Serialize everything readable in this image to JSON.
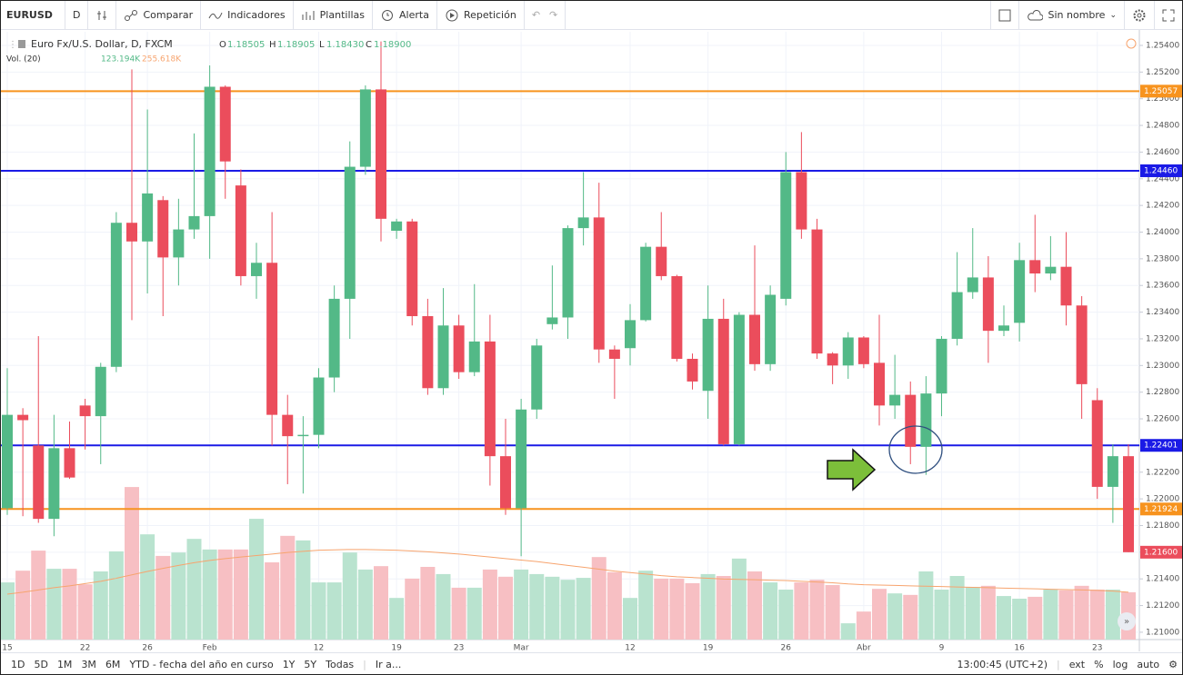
{
  "toolbar": {
    "symbol": "EURUSD",
    "interval": "D",
    "compare": "Comparar",
    "indicators": "Indicadores",
    "templates": "Plantillas",
    "alert": "Alerta",
    "replay": "Repetición",
    "layout_name": "Sin nombre"
  },
  "legend": {
    "title": "Euro Fx/U.S. Dollar, D, FXCM",
    "o_label": "O",
    "o_value": "1.18505",
    "h_label": "H",
    "h_value": "1.18905",
    "l_label": "L",
    "l_value": "1.18430",
    "c_label": "C",
    "c_value": "1.18900",
    "volume_title": "Vol. (20)",
    "volume_value": "123.194K",
    "volume_ma_value": "255.618K"
  },
  "bottom_bar": {
    "ranges": [
      "1D",
      "5D",
      "1M",
      "3M",
      "6M",
      "YTD - fecha del año en curso",
      "1Y",
      "5Y",
      "Todas"
    ],
    "goto": "Ir a...",
    "clock": "13:00:45 (UTC+2)",
    "ext": "ext",
    "percent": "%",
    "log": "log",
    "auto": "auto"
  },
  "chart_data": {
    "type": "candlestick",
    "categories": [
      "15",
      null,
      null,
      null,
      null,
      "22",
      null,
      null,
      null,
      "26",
      null,
      null,
      null,
      "Feb",
      null,
      null,
      null,
      null,
      null,
      null,
      "12",
      null,
      null,
      null,
      null,
      "19",
      null,
      null,
      null,
      "23",
      null,
      null,
      null,
      "Mar",
      null,
      null,
      null,
      null,
      null,
      null,
      "12",
      null,
      null,
      null,
      null,
      "19",
      null,
      null,
      null,
      null,
      "26",
      null,
      null,
      null,
      null,
      "Abr",
      null,
      null,
      null,
      null,
      "9",
      null,
      null,
      null,
      null,
      "16",
      null,
      null,
      null,
      null,
      "23",
      null,
      null
    ],
    "open": [
      1.2193,
      1.2263,
      1.224,
      1.2185,
      1.2238,
      1.227,
      1.2262,
      1.2299,
      1.2407,
      1.2393,
      1.2424,
      1.2381,
      1.2402,
      1.2412,
      1.2509,
      1.2435,
      1.2367,
      1.2377,
      1.2263,
      1.2247,
      1.2248,
      1.2291,
      1.235,
      1.2449,
      1.2507,
      1.2401,
      1.2408,
      1.2337,
      1.2283,
      1.233,
      1.2295,
      1.2318,
      1.2232,
      1.2193,
      1.2267,
      1.2331,
      1.2336,
      1.2403,
      1.2411,
      1.2312,
      1.2313,
      1.2334,
      1.2389,
      1.2367,
      1.2305,
      1.2281,
      1.2335,
      1.2241,
      1.2338,
      1.2301,
      1.235,
      1.2445,
      1.2402,
      1.2309,
      1.23,
      1.2321,
      1.2302,
      1.227,
      1.2278,
      1.2239,
      1.2279,
      1.232,
      1.2355,
      1.2366,
      1.2326,
      1.2332,
      1.2379,
      1.2369,
      1.2374,
      1.2345,
      1.2274,
      1.2209,
      1.2232
    ],
    "high": [
      1.2298,
      1.2268,
      1.2322,
      1.2263,
      1.2258,
      1.2275,
      1.2302,
      1.2415,
      1.2522,
      1.2492,
      1.2427,
      1.2425,
      1.2474,
      1.2525,
      1.251,
      1.2447,
      1.2392,
      1.2415,
      1.2278,
      1.2262,
      1.2298,
      1.236,
      1.2468,
      1.251,
      1.2543,
      1.241,
      1.241,
      1.235,
      1.2358,
      1.2338,
      1.2361,
      1.2338,
      1.226,
      1.2275,
      1.232,
      1.2375,
      1.2405,
      1.2445,
      1.2437,
      1.2315,
      1.2346,
      1.2392,
      1.2415,
      1.2368,
      1.2309,
      1.236,
      1.235,
      1.234,
      1.239,
      1.236,
      1.246,
      1.2475,
      1.241,
      1.231,
      1.2325,
      1.2322,
      1.2338,
      1.2308,
      1.2288,
      1.2292,
      1.2322,
      1.2385,
      1.2403,
      1.2382,
      1.2345,
      1.2392,
      1.2413,
      1.2397,
      1.24,
      1.2352,
      1.2283,
      1.2241,
      1.2241
    ],
    "low": [
      1.2188,
      1.2187,
      1.2182,
      1.2172,
      1.2215,
      1.2237,
      1.2226,
      1.2295,
      1.2334,
      1.2354,
      1.2337,
      1.236,
      1.2395,
      1.238,
      1.2425,
      1.236,
      1.235,
      1.224,
      1.2211,
      1.2204,
      1.2238,
      1.228,
      1.232,
      1.2443,
      1.2393,
      1.2395,
      1.233,
      1.2278,
      1.2278,
      1.229,
      1.2292,
      1.221,
      1.2188,
      1.2157,
      1.226,
      1.2327,
      1.232,
      1.239,
      1.2302,
      1.2275,
      1.23,
      1.2333,
      1.2364,
      1.2303,
      1.2282,
      1.226,
      1.224,
      1.224,
      1.2296,
      1.2296,
      1.2345,
      1.2395,
      1.2305,
      1.2286,
      1.229,
      1.2298,
      1.2255,
      1.226,
      1.2226,
      1.2218,
      1.2262,
      1.2315,
      1.235,
      1.2302,
      1.2322,
      1.2318,
      1.2355,
      1.2364,
      1.233,
      1.226,
      1.22,
      1.2182,
      1.216
    ],
    "close": [
      1.2263,
      1.2259,
      1.2185,
      1.2238,
      1.2216,
      1.2262,
      1.2299,
      1.2407,
      1.2393,
      1.2429,
      1.2381,
      1.2402,
      1.2412,
      1.2509,
      1.2453,
      1.2367,
      1.2377,
      1.2263,
      1.2247,
      1.2248,
      1.2291,
      1.235,
      1.2449,
      1.2507,
      1.241,
      1.2408,
      1.2337,
      1.2283,
      1.233,
      1.2295,
      1.2318,
      1.2232,
      1.2193,
      1.2267,
      1.2315,
      1.2336,
      1.2403,
      1.2411,
      1.2312,
      1.2305,
      1.2334,
      1.2389,
      1.2367,
      1.2305,
      1.2288,
      1.2335,
      1.2241,
      1.2338,
      1.2301,
      1.2353,
      1.2445,
      1.2402,
      1.2309,
      1.23,
      1.2321,
      1.2301,
      1.227,
      1.2278,
      1.2239,
      1.2279,
      1.232,
      1.2355,
      1.2366,
      1.2326,
      1.233,
      1.2379,
      1.2369,
      1.2374,
      1.2345,
      1.2286,
      1.2209,
      1.2232,
      1.216
    ],
    "up_color": "#53b987",
    "down_color": "#eb4d5c",
    "volume": [
      151,
      182,
      235,
      187,
      187,
      146,
      180,
      233,
      403,
      278,
      221,
      230,
      266,
      238,
      238,
      238,
      319,
      204,
      274,
      262,
      151,
      151,
      230,
      185,
      194,
      110,
      161,
      192,
      173,
      137,
      137,
      185,
      166,
      185,
      173,
      166,
      158,
      163,
      218,
      178,
      110,
      182,
      161,
      161,
      149,
      173,
      168,
      214,
      180,
      151,
      132,
      151,
      158,
      144,
      43,
      74,
      134,
      122,
      118,
      180,
      132,
      168,
      139,
      142,
      115,
      108,
      113,
      132,
      130,
      142,
      132,
      132,
      125
    ],
    "volume_ma": [
      120,
      125,
      131,
      137,
      142,
      148,
      154,
      162,
      171,
      180,
      188,
      196,
      203,
      209,
      214,
      218,
      222,
      226,
      230,
      233,
      236,
      237,
      238,
      238,
      237,
      236,
      234,
      232,
      229,
      226,
      222,
      218,
      214,
      210,
      206,
      201,
      196,
      191,
      186,
      181,
      177,
      173,
      169,
      166,
      164,
      162,
      160,
      159,
      158,
      157,
      156,
      154,
      152,
      150,
      147,
      145,
      144,
      143,
      142,
      141,
      140,
      139,
      138,
      137,
      136,
      135,
      134,
      133,
      132,
      131,
      130,
      128,
      125
    ],
    "volume_up_color": "#b9e3cf",
    "volume_down_color": "#f7bfc3",
    "volume_ma_color": "#f7a46e",
    "vlim": [
      0,
      420
    ],
    "ylim": [
      1.20945,
      1.25502
    ],
    "yticks": [
      {
        "value": 1.21,
        "label": "1.21000"
      },
      {
        "value": 1.212,
        "label": "1.21200"
      },
      {
        "value": 1.214,
        "label": "1.21400"
      },
      {
        "value": 1.216,
        "label": "1.21600"
      },
      {
        "value": 1.218,
        "label": "1.21800"
      },
      {
        "value": 1.22,
        "label": "1.22000"
      },
      {
        "value": 1.222,
        "label": "1.22200"
      },
      {
        "value": 1.224,
        "label": "1.22400"
      },
      {
        "value": 1.226,
        "label": "1.22600"
      },
      {
        "value": 1.228,
        "label": "1.22800"
      },
      {
        "value": 1.23,
        "label": "1.23000"
      },
      {
        "value": 1.232,
        "label": "1.23200"
      },
      {
        "value": 1.234,
        "label": "1.23400"
      },
      {
        "value": 1.236,
        "label": "1.23600"
      },
      {
        "value": 1.238,
        "label": "1.23800"
      },
      {
        "value": 1.24,
        "label": "1.24000"
      },
      {
        "value": 1.242,
        "label": "1.24200"
      },
      {
        "value": 1.244,
        "label": "1.24400"
      },
      {
        "value": 1.246,
        "label": "1.24600"
      },
      {
        "value": 1.248,
        "label": "1.24800"
      },
      {
        "value": 1.25,
        "label": "1.25000"
      },
      {
        "value": 1.252,
        "label": "1.25200"
      },
      {
        "value": 1.254,
        "label": "1.25400"
      }
    ],
    "grid": true,
    "hlines": [
      {
        "value": 1.25057,
        "label": "1.25057",
        "color": "#f7931e"
      },
      {
        "value": 1.2446,
        "label": "1.24460",
        "color": "#1a1ae6"
      },
      {
        "value": 1.22401,
        "label": "1.22401",
        "color": "#1a1ae6"
      },
      {
        "value": 1.21924,
        "label": "1.21924",
        "color": "#f7931e"
      }
    ],
    "last_price": {
      "value": 1.216,
      "label": "1.21600",
      "color": "#eb4d5c"
    }
  }
}
